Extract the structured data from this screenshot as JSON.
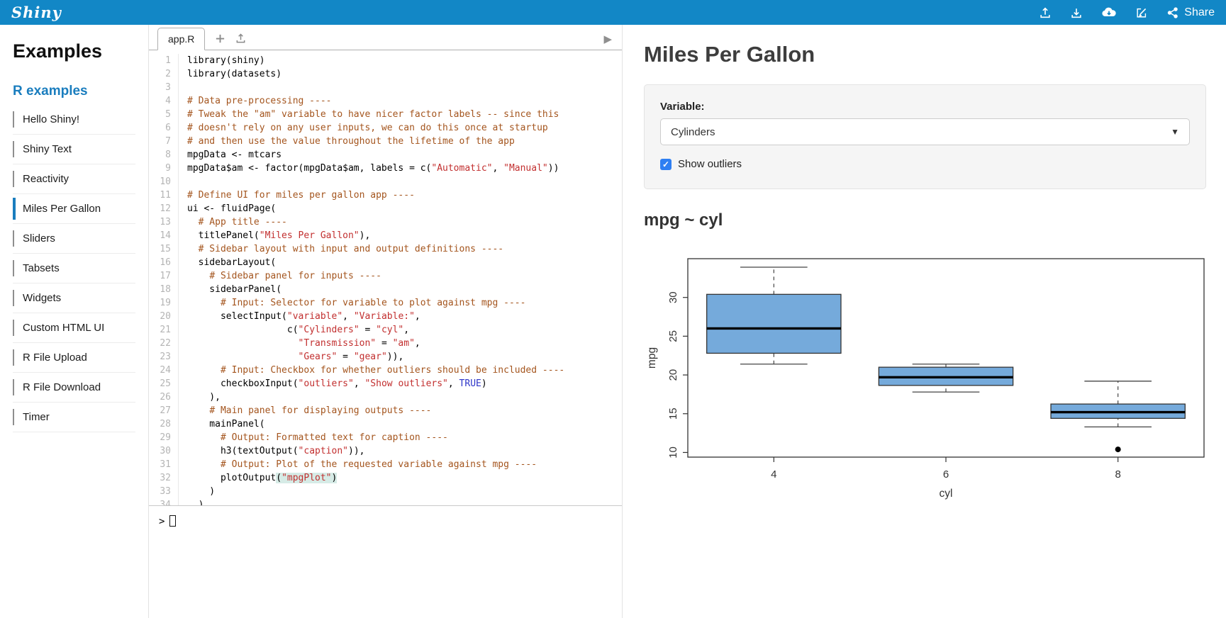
{
  "colors": {
    "header_bg": "#1287c6",
    "accent_blue": "#1a7dbe",
    "checkbox_blue": "#2e7ff2",
    "box_fill": "#75AADB",
    "comment": "#a4551e",
    "string": "#c22f2f",
    "keyword": "#2d35c8"
  },
  "header": {
    "logo": "Shiny",
    "share_label": "Share",
    "icons": [
      "upload-icon",
      "download-icon",
      "cloud-download-icon",
      "edit-icon",
      "share-icon"
    ]
  },
  "sidebar": {
    "title": "Examples",
    "section": "R examples",
    "items": [
      {
        "label": "Hello Shiny!",
        "selected": false
      },
      {
        "label": "Shiny Text",
        "selected": false
      },
      {
        "label": "Reactivity",
        "selected": false
      },
      {
        "label": "Miles Per Gallon",
        "selected": true
      },
      {
        "label": "Sliders",
        "selected": false
      },
      {
        "label": "Tabsets",
        "selected": false
      },
      {
        "label": "Widgets",
        "selected": false
      },
      {
        "label": "Custom HTML UI",
        "selected": false
      },
      {
        "label": "R File Upload",
        "selected": false
      },
      {
        "label": "R File Download",
        "selected": false
      },
      {
        "label": "Timer",
        "selected": false
      }
    ]
  },
  "editor": {
    "tab_label": "app.R",
    "console_prompt": ">",
    "lines": [
      [
        [
          "",
          "library(shiny)"
        ]
      ],
      [
        [
          "",
          "library(datasets)"
        ]
      ],
      [
        [
          "",
          ""
        ]
      ],
      [
        [
          "c",
          "# Data pre-processing ----"
        ]
      ],
      [
        [
          "c",
          "# Tweak the \"am\" variable to have nicer factor labels -- since this"
        ]
      ],
      [
        [
          "c",
          "# doesn't rely on any user inputs, we can do this once at startup"
        ]
      ],
      [
        [
          "c",
          "# and then use the value throughout the lifetime of the app"
        ]
      ],
      [
        [
          "",
          "mpgData <- mtcars"
        ]
      ],
      [
        [
          "",
          "mpgData$am <- factor(mpgData$am, labels = c("
        ],
        [
          "s",
          "\"Automatic\""
        ],
        [
          "",
          ", "
        ],
        [
          "s",
          "\"Manual\""
        ],
        [
          "",
          "))"
        ]
      ],
      [
        [
          "",
          ""
        ]
      ],
      [
        [
          "c",
          "# Define UI for miles per gallon app ----"
        ]
      ],
      [
        [
          "",
          "ui <- fluidPage("
        ]
      ],
      [
        [
          "",
          "  "
        ],
        [
          "c",
          "# App title ----"
        ]
      ],
      [
        [
          "",
          "  titlePanel("
        ],
        [
          "s",
          "\"Miles Per Gallon\""
        ],
        [
          "",
          "),"
        ]
      ],
      [
        [
          "",
          "  "
        ],
        [
          "c",
          "# Sidebar layout with input and output definitions ----"
        ]
      ],
      [
        [
          "",
          "  sidebarLayout("
        ]
      ],
      [
        [
          "",
          "    "
        ],
        [
          "c",
          "# Sidebar panel for inputs ----"
        ]
      ],
      [
        [
          "",
          "    sidebarPanel("
        ]
      ],
      [
        [
          "",
          "      "
        ],
        [
          "c",
          "# Input: Selector for variable to plot against mpg ----"
        ]
      ],
      [
        [
          "",
          "      selectInput("
        ],
        [
          "s",
          "\"variable\""
        ],
        [
          "",
          ", "
        ],
        [
          "s",
          "\"Variable:\""
        ],
        [
          "",
          ","
        ]
      ],
      [
        [
          "",
          "                  c("
        ],
        [
          "s",
          "\"Cylinders\""
        ],
        [
          "",
          " = "
        ],
        [
          "s",
          "\"cyl\""
        ],
        [
          "",
          ","
        ]
      ],
      [
        [
          "",
          "                    "
        ],
        [
          "s",
          "\"Transmission\""
        ],
        [
          "",
          " = "
        ],
        [
          "s",
          "\"am\""
        ],
        [
          "",
          ","
        ]
      ],
      [
        [
          "",
          "                    "
        ],
        [
          "s",
          "\"Gears\""
        ],
        [
          "",
          " = "
        ],
        [
          "s",
          "\"gear\""
        ],
        [
          "",
          ")),"
        ]
      ],
      [
        [
          "",
          "      "
        ],
        [
          "c",
          "# Input: Checkbox for whether outliers should be included ----"
        ]
      ],
      [
        [
          "",
          "      checkboxInput("
        ],
        [
          "s",
          "\"outliers\""
        ],
        [
          "",
          ", "
        ],
        [
          "s",
          "\"Show outliers\""
        ],
        [
          "",
          ", "
        ],
        [
          "k",
          "TRUE"
        ],
        [
          "",
          ")"
        ]
      ],
      [
        [
          "",
          "    ),"
        ]
      ],
      [
        [
          "",
          "    "
        ],
        [
          "c",
          "# Main panel for displaying outputs ----"
        ]
      ],
      [
        [
          "",
          "    mainPanel("
        ]
      ],
      [
        [
          "",
          "      "
        ],
        [
          "c",
          "# Output: Formatted text for caption ----"
        ]
      ],
      [
        [
          "",
          "      h3(textOutput("
        ],
        [
          "s",
          "\"caption\""
        ],
        [
          "",
          ")),"
        ]
      ],
      [
        [
          "",
          "      "
        ],
        [
          "c",
          "# Output: Plot of the requested variable against mpg ----"
        ]
      ],
      [
        [
          "",
          "      plotOutput"
        ],
        [
          "h",
          "("
        ],
        [
          "sh",
          "\"mpgPlot\""
        ],
        [
          "h",
          ")"
        ]
      ],
      [
        [
          "",
          "    )"
        ]
      ],
      [
        [
          "",
          "  )"
        ]
      ]
    ]
  },
  "main": {
    "title": "Miles Per Gallon",
    "form": {
      "variable_label": "Variable:",
      "variable_value": "Cylinders",
      "checkbox_label": "Show outliers",
      "checkbox_checked": true
    },
    "caption": "mpg ~ cyl"
  },
  "chart_data": {
    "type": "boxplot",
    "title": "mpg ~ cyl",
    "xlabel": "cyl",
    "ylabel": "mpg",
    "categories": [
      "4",
      "6",
      "8"
    ],
    "yticks": [
      10,
      15,
      20,
      25,
      30
    ],
    "ylim": [
      9.4,
      35
    ],
    "grid": false,
    "box_fill": "#75AADB",
    "series": [
      {
        "category": "4",
        "low": 21.4,
        "q1": 22.8,
        "median": 26.0,
        "q3": 30.4,
        "high": 33.9,
        "outliers": []
      },
      {
        "category": "6",
        "low": 17.8,
        "q1": 18.65,
        "median": 19.7,
        "q3": 21.0,
        "high": 21.4,
        "outliers": []
      },
      {
        "category": "8",
        "low": 13.3,
        "q1": 14.4,
        "median": 15.2,
        "q3": 16.25,
        "high": 19.2,
        "outliers": [
          10.4
        ]
      }
    ]
  }
}
